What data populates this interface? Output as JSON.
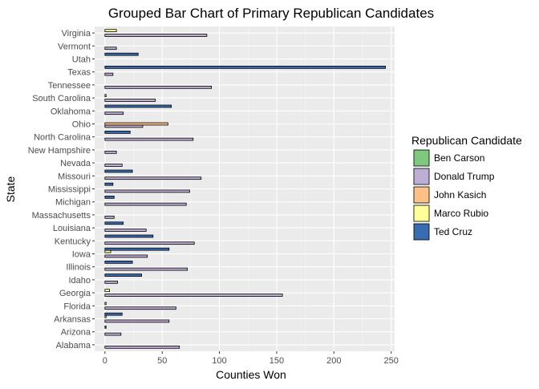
{
  "chart_data": {
    "type": "bar",
    "orientation": "horizontal",
    "title": "Grouped Bar Chart of Primary Republican Candidates",
    "xlabel": "Counties Won",
    "ylabel": "State",
    "xlim": [
      -9,
      253
    ],
    "xticks": [
      0,
      50,
      100,
      150,
      200,
      250
    ],
    "grid": true,
    "legend_position": "right",
    "legend_title": "Republican Candidate",
    "categories": [
      "Alabama",
      "Arizona",
      "Arkansas",
      "Florida",
      "Georgia",
      "Idaho",
      "Illinois",
      "Iowa",
      "Kentucky",
      "Louisiana",
      "Massachusetts",
      "Michigan",
      "Mississippi",
      "Missouri",
      "Nevada",
      "New Hampshire",
      "North Carolina",
      "Ohio",
      "Oklahoma",
      "South Carolina",
      "Tennessee",
      "Texas",
      "Utah",
      "Vermont",
      "Virginia"
    ],
    "series": [
      {
        "name": "Ben Carson",
        "color": "#7FC97F",
        "values": [
          0,
          0,
          0,
          0,
          0,
          0,
          0,
          0,
          0,
          0,
          0,
          0,
          0,
          0,
          0,
          0,
          0,
          0,
          0,
          0,
          0,
          0,
          0,
          0,
          0
        ]
      },
      {
        "name": "Donald Trump",
        "color": "#BEAED4",
        "values": [
          65,
          14,
          56,
          62,
          155,
          11,
          72,
          37,
          78,
          36,
          8,
          71,
          74,
          84,
          15,
          10,
          77,
          33,
          16,
          44,
          93,
          7,
          0,
          10,
          89
        ]
      },
      {
        "name": "John Kasich",
        "color": "#FDC086",
        "values": [
          0,
          0,
          0,
          0,
          0,
          0,
          0,
          0,
          0,
          0,
          0,
          0,
          0,
          0,
          0,
          0,
          0,
          55,
          0,
          0,
          0,
          0,
          0,
          0,
          0
        ]
      },
      {
        "name": "Marco Rubio",
        "color": "#FFFF99",
        "values": [
          0,
          0,
          1,
          1,
          4,
          0,
          0,
          5,
          0,
          0,
          0,
          0,
          0,
          0,
          0,
          0,
          0,
          0,
          0,
          1,
          0,
          0,
          0,
          0,
          10
        ]
      },
      {
        "name": "Ted Cruz",
        "color": "#386CB0",
        "values": [
          0,
          1,
          15,
          0,
          0,
          32,
          24,
          56,
          42,
          16,
          0,
          8,
          7,
          24,
          0,
          0,
          22,
          0,
          58,
          0,
          0,
          245,
          29,
          0,
          0
        ]
      }
    ]
  }
}
